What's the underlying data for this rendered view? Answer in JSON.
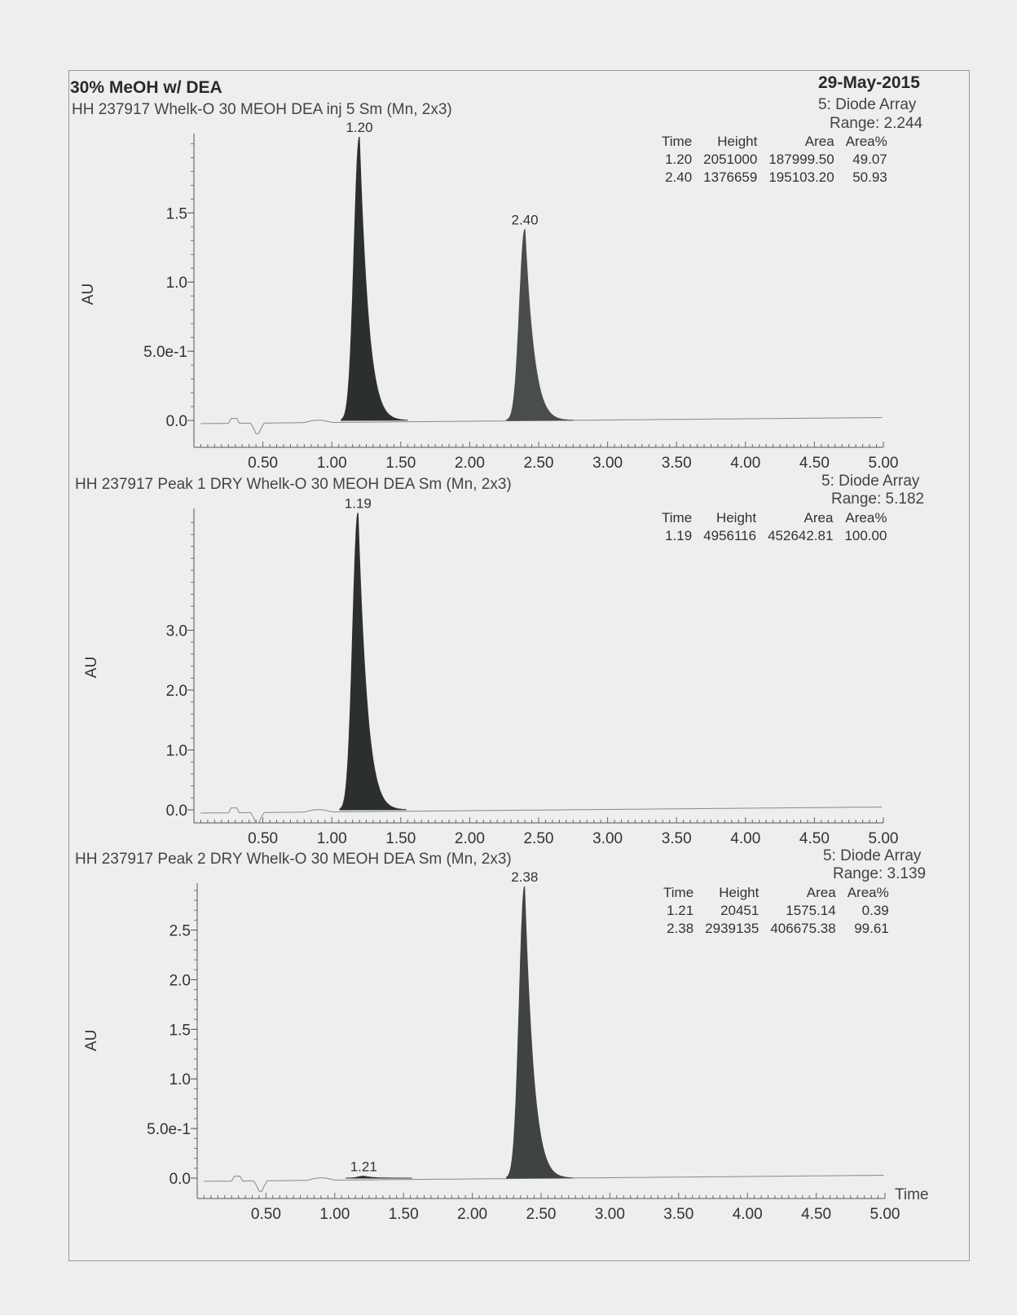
{
  "report": {
    "title": "30% MeOH w/ DEA",
    "date": "29-May-2015"
  },
  "chart_data": [
    {
      "type": "line",
      "subtitle": "HH 237917   Whelk-O 30 MEOH DEA inj 5 Sm (Mn, 2x3)",
      "detector": "5: Diode Array",
      "range": "Range: 2.244",
      "ylabel": "AU",
      "xlabel": "",
      "xlim": [
        0.0,
        5.0
      ],
      "ylim": [
        -0.19,
        2.05
      ],
      "x_ticks": [
        "0.50",
        "1.00",
        "1.50",
        "2.00",
        "2.50",
        "3.00",
        "3.50",
        "4.00",
        "4.50",
        "5.00"
      ],
      "y_ticks": [
        {
          "v": 0.0,
          "label": "0.0"
        },
        {
          "v": 0.5,
          "label": "5.0e-1"
        },
        {
          "v": 1.0,
          "label": "1.0"
        },
        {
          "v": 1.5,
          "label": "1.5"
        }
      ],
      "peaks": [
        {
          "label": "1.20",
          "rt": 1.2,
          "height_au": 2.05,
          "color": "#2b302f"
        },
        {
          "label": "2.40",
          "rt": 2.4,
          "height_au": 1.38,
          "color": "#4a4d4d"
        }
      ],
      "table": {
        "headers": [
          "Time",
          "Height",
          "Area",
          "Area%"
        ],
        "rows": [
          [
            "1.20",
            "2051000",
            "187999.50",
            "49.07"
          ],
          [
            "2.40",
            "1376659",
            "195103.20",
            "50.93"
          ]
        ]
      }
    },
    {
      "type": "line",
      "subtitle": "HH 237917   Peak 1 DRY    Whelk-O 30 MEOH DEA Sm (Mn, 2x3)",
      "detector": "5: Diode Array",
      "range": "Range: 5.182",
      "ylabel": "AU",
      "xlabel": "",
      "xlim": [
        0.0,
        5.0
      ],
      "ylim": [
        -0.2,
        4.98
      ],
      "x_ticks": [
        "0.50",
        "1.00",
        "1.50",
        "2.00",
        "2.50",
        "3.00",
        "3.50",
        "4.00",
        "4.50",
        "5.00"
      ],
      "y_ticks": [
        {
          "v": 0.0,
          "label": "0.0"
        },
        {
          "v": 1.0,
          "label": "1.0"
        },
        {
          "v": 2.0,
          "label": "2.0"
        },
        {
          "v": 3.0,
          "label": "3.0"
        }
      ],
      "peaks": [
        {
          "label": "1.19",
          "rt": 1.19,
          "height_au": 4.96,
          "color": "#2b302f"
        }
      ],
      "table": {
        "headers": [
          "Time",
          "Height",
          "Area",
          "Area%"
        ],
        "rows": [
          [
            "1.19",
            "4956116",
            "452642.81",
            "100.00"
          ]
        ]
      }
    },
    {
      "type": "line",
      "subtitle": "HH 237917   Peak 2  DRY    Whelk-O 30 MEOH DEA Sm (Mn, 2x3)",
      "detector": "5: Diode Array",
      "range": "Range: 3.139",
      "ylabel": "AU",
      "xlabel": "Time",
      "xlim": [
        0.0,
        5.0
      ],
      "ylim": [
        -0.2,
        2.94
      ],
      "x_ticks": [
        "0.50",
        "1.00",
        "1.50",
        "2.00",
        "2.50",
        "3.00",
        "3.50",
        "4.00",
        "4.50",
        "5.00"
      ],
      "y_ticks": [
        {
          "v": 0.0,
          "label": "0.0"
        },
        {
          "v": 0.5,
          "label": "5.0e-1"
        },
        {
          "v": 1.0,
          "label": "1.0"
        },
        {
          "v": 1.5,
          "label": "1.5"
        },
        {
          "v": 2.0,
          "label": "2.0"
        },
        {
          "v": 2.5,
          "label": "2.5"
        }
      ],
      "peaks": [
        {
          "label": "1.21",
          "rt": 1.21,
          "height_au": 0.02,
          "color": "#2b302f"
        },
        {
          "label": "2.38",
          "rt": 2.38,
          "height_au": 2.94,
          "color": "#3f4342"
        }
      ],
      "table": {
        "headers": [
          "Time",
          "Height",
          "Area",
          "Area%"
        ],
        "rows": [
          [
            "1.21",
            "20451",
            "1575.14",
            "0.39"
          ],
          [
            "2.38",
            "2939135",
            "406675.38",
            "99.61"
          ]
        ]
      }
    }
  ]
}
